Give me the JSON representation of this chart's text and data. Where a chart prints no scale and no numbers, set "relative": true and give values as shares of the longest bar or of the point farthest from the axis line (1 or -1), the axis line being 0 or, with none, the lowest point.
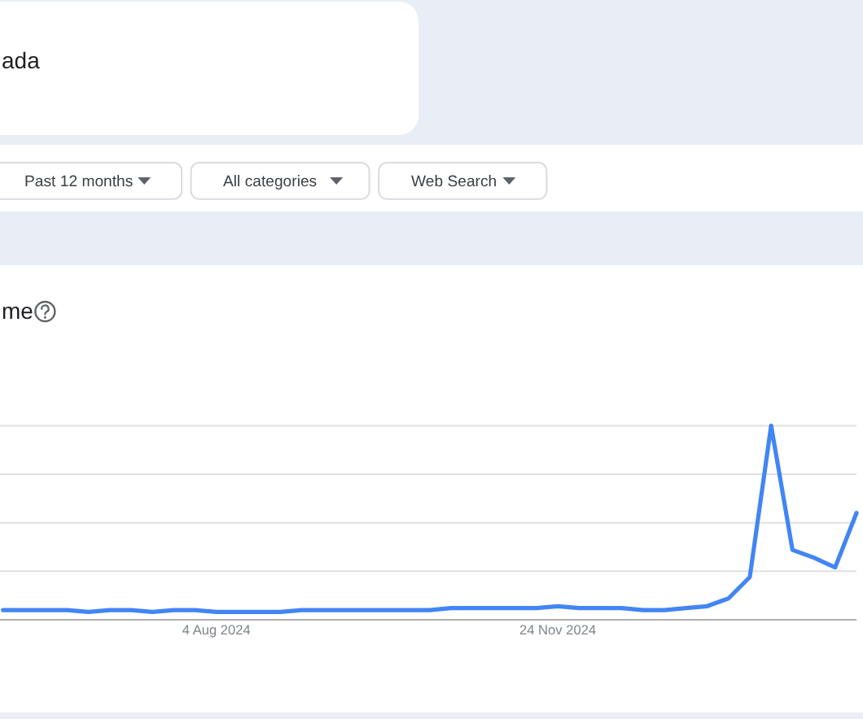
{
  "chart_data": {
    "type": "line",
    "title": "me",
    "relative": true,
    "annotations": [
      "ada",
      "Past 12 months",
      "All categories",
      "Web Search"
    ],
    "x": [
      "2024-05-26",
      "2024-06-02",
      "2024-06-09",
      "2024-06-16",
      "2024-06-23",
      "2024-06-30",
      "2024-07-07",
      "2024-07-14",
      "2024-07-21",
      "2024-07-28",
      "2024-08-04",
      "2024-08-11",
      "2024-08-18",
      "2024-08-25",
      "2024-09-01",
      "2024-09-08",
      "2024-09-15",
      "2024-09-22",
      "2024-09-29",
      "2024-10-06",
      "2024-10-13",
      "2024-10-20",
      "2024-10-27",
      "2024-11-03",
      "2024-11-10",
      "2024-11-17",
      "2024-11-24",
      "2024-12-01",
      "2024-12-08",
      "2024-12-15",
      "2024-12-22",
      "2024-12-29",
      "2025-01-05",
      "2025-01-12",
      "2025-01-19",
      "2025-01-26",
      "2025-02-02",
      "2025-02-09",
      "2025-02-16",
      "2025-02-23",
      "2025-03-02"
    ],
    "series": [
      {
        "color": "#4285f4",
        "values": [
          0.05,
          0.05,
          0.05,
          0.05,
          0.04,
          0.05,
          0.05,
          0.04,
          0.05,
          0.05,
          0.04,
          0.04,
          0.04,
          0.04,
          0.05,
          0.05,
          0.05,
          0.05,
          0.05,
          0.05,
          0.05,
          0.06,
          0.06,
          0.06,
          0.06,
          0.06,
          0.07,
          0.06,
          0.06,
          0.06,
          0.05,
          0.05,
          0.06,
          0.07,
          0.11,
          0.22,
          1,
          0.36,
          0.32,
          0.27,
          0.55
        ]
      }
    ],
    "xlim": [
      "2024-05-25",
      "2025-03-02"
    ],
    "xticks": [
      {
        "value": "2024-08-04",
        "label": "4 Aug 2024"
      },
      {
        "value": "2024-11-24",
        "label": "24 Nov 2024"
      }
    ],
    "grid": "y",
    "tick_labels": "x"
  }
}
